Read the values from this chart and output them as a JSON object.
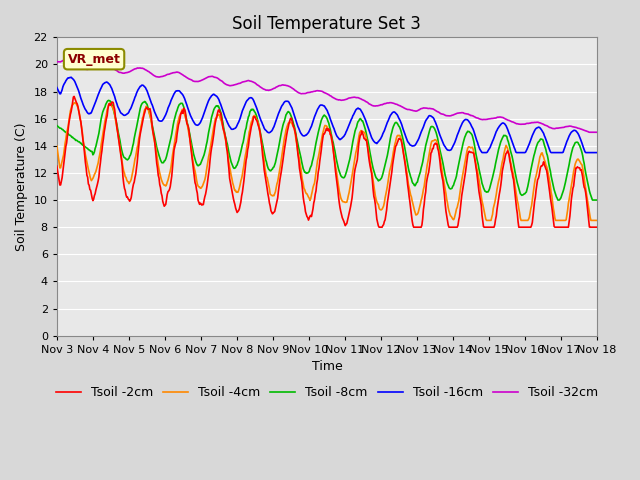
{
  "title": "Soil Temperature Set 3",
  "xlabel": "Time",
  "ylabel": "Soil Temperature (C)",
  "xlim": [
    0,
    15
  ],
  "ylim": [
    0,
    22
  ],
  "yticks": [
    0,
    2,
    4,
    6,
    8,
    10,
    12,
    14,
    16,
    18,
    20,
    22
  ],
  "xtick_labels": [
    "Nov 3",
    "Nov 4",
    "Nov 5",
    "Nov 6",
    "Nov 7",
    "Nov 8",
    "Nov 9",
    "Nov 10",
    "Nov 11",
    "Nov 12",
    "Nov 13",
    "Nov 14",
    "Nov 15",
    "Nov 16",
    "Nov 17",
    "Nov 18"
  ],
  "xtick_positions": [
    0,
    1,
    2,
    3,
    4,
    5,
    6,
    7,
    8,
    9,
    10,
    11,
    12,
    13,
    14,
    15
  ],
  "colors": {
    "Tsoil_2cm": "#ff0000",
    "Tsoil_4cm": "#ff8800",
    "Tsoil_8cm": "#00bb00",
    "Tsoil_16cm": "#0000ff",
    "Tsoil_32cm": "#cc00cc"
  },
  "legend_labels": [
    "Tsoil -2cm",
    "Tsoil -4cm",
    "Tsoil -8cm",
    "Tsoil -16cm",
    "Tsoil -32cm"
  ],
  "annotation_text": "VR_met",
  "plot_bg_color": "#e8e8e8",
  "fig_bg_color": "#d8d8d8",
  "title_fontsize": 12,
  "axis_label_fontsize": 9,
  "tick_fontsize": 8,
  "legend_fontsize": 9,
  "grid_color": "#ffffff",
  "linewidth": 1.2
}
